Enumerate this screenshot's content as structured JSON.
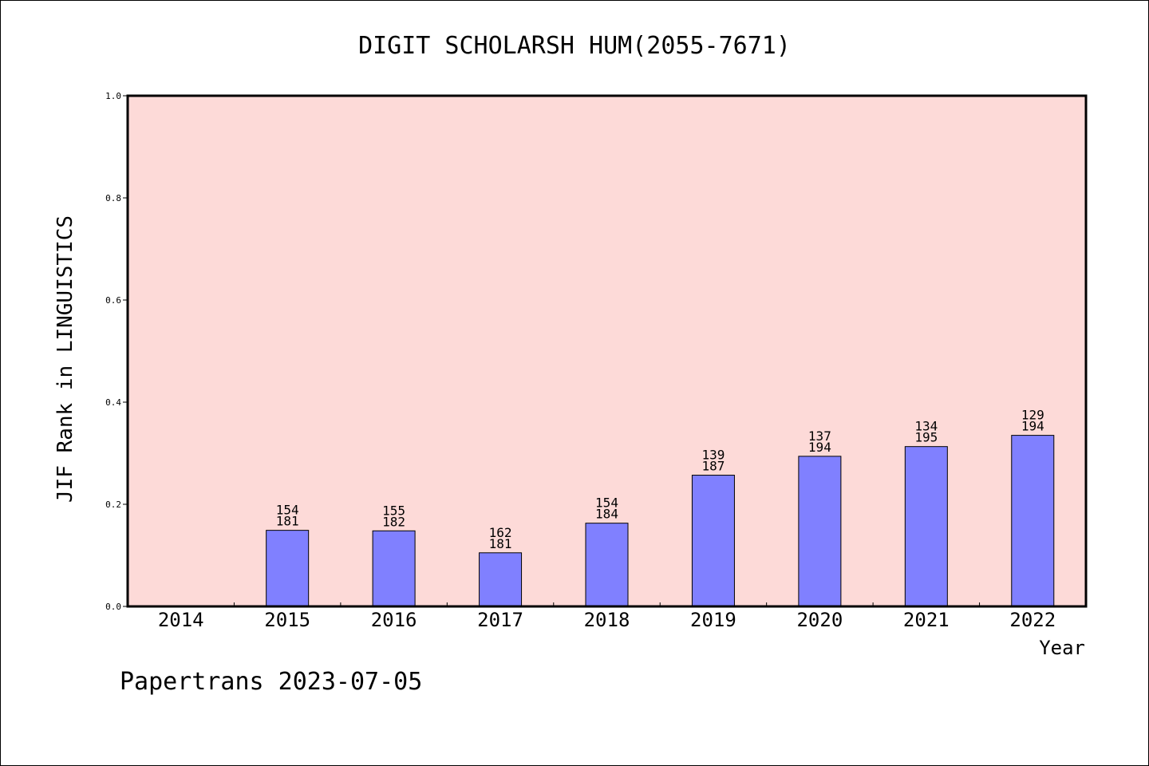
{
  "title": "DIGIT SCHOLARSH HUM(2055-7671)",
  "footer": "Papertrans 2023-07-05",
  "colors": {
    "plot_background": "#fddad8",
    "bar_fill": "#8080ff",
    "axis": "#000000"
  },
  "chart_data": {
    "type": "bar",
    "title": "DIGIT SCHOLARSH HUM(2055-7671)",
    "xlabel": "Year",
    "ylabel": "JIF Rank in LINGUISTICS",
    "ylim": [
      0,
      1.0
    ],
    "yticks": [
      "0.0",
      "0.2",
      "0.4",
      "0.6",
      "0.8",
      "1.0"
    ],
    "grid": false,
    "categories": [
      "2014",
      "2015",
      "2016",
      "2017",
      "2018",
      "2019",
      "2020",
      "2021",
      "2022"
    ],
    "values": [
      null,
      0.149,
      0.148,
      0.105,
      0.163,
      0.257,
      0.294,
      0.313,
      0.335
    ],
    "labels": [
      null,
      [
        "154",
        "181"
      ],
      [
        "155",
        "182"
      ],
      [
        "162",
        "181"
      ],
      [
        "154",
        "184"
      ],
      [
        "139",
        "187"
      ],
      [
        "137",
        "194"
      ],
      [
        "134",
        "195"
      ],
      [
        "129",
        "194"
      ]
    ]
  }
}
